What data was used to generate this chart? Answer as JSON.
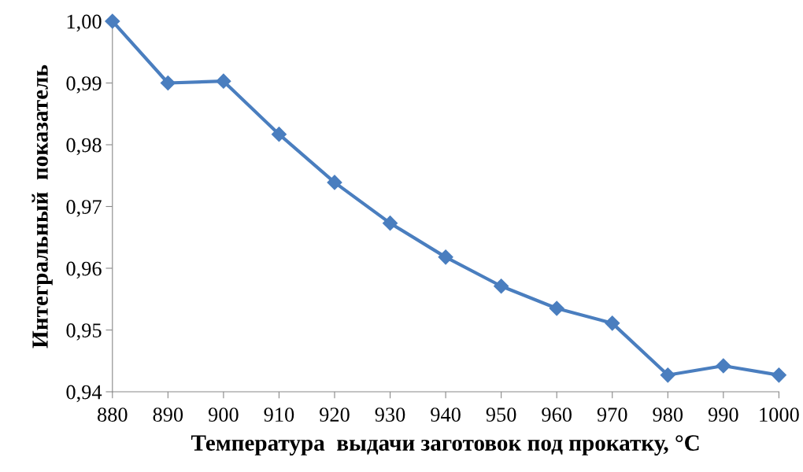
{
  "chart_data": {
    "type": "line",
    "xlabel": "Температура  выдачи заготовок под прокатку, °С",
    "ylabel": "Интегральный  показатель",
    "x": [
      880,
      890,
      900,
      910,
      920,
      930,
      940,
      950,
      960,
      970,
      980,
      990,
      1000
    ],
    "series": [
      {
        "color": "#4a7ebf",
        "values": [
          1.0,
          0.99,
          0.9903,
          0.9817,
          0.9739,
          0.9673,
          0.9618,
          0.9571,
          0.9535,
          0.9511,
          0.9427,
          0.9442,
          0.9427
        ]
      }
    ],
    "xlim": [
      880,
      1000
    ],
    "xticks": [
      880,
      890,
      900,
      910,
      920,
      930,
      940,
      950,
      960,
      970,
      980,
      990,
      1000
    ],
    "ylim": [
      0.94,
      1.0
    ],
    "yticks": [
      {
        "value": 0.94,
        "label": "0,94"
      },
      {
        "value": 0.95,
        "label": "0,95"
      },
      {
        "value": 0.96,
        "label": "0,96"
      },
      {
        "value": 0.97,
        "label": "0,97"
      },
      {
        "value": 0.98,
        "label": "0,98"
      },
      {
        "value": 0.99,
        "label": "0,99"
      },
      {
        "value": 1.0,
        "label": "1,00"
      }
    ],
    "grid": false,
    "legend": false,
    "marker": "diamond",
    "line_style": "solid"
  }
}
